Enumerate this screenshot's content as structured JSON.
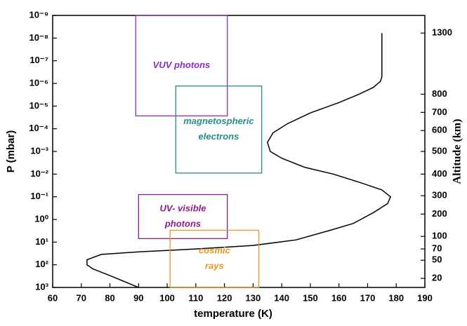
{
  "chart_data": {
    "type": "line",
    "xlabel": "temperature (K)",
    "ylabel": "P (mbar)",
    "y2label": "Altitude (km)",
    "xlim": [
      60,
      190
    ],
    "xticks": [
      60,
      70,
      80,
      90,
      100,
      110,
      120,
      130,
      140,
      150,
      160,
      170,
      180,
      190
    ],
    "ylim": [
      1000,
      1e-09
    ],
    "yscale": "log",
    "yticks": [
      {
        "value": 1e-09,
        "label": "10⁻⁹"
      },
      {
        "value": 1e-08,
        "label": "10⁻⁸"
      },
      {
        "value": 1e-07,
        "label": "10⁻⁷"
      },
      {
        "value": 1e-06,
        "label": "10⁻⁶"
      },
      {
        "value": 1e-05,
        "label": "10⁻⁵"
      },
      {
        "value": 0.0001,
        "label": "10⁻⁴"
      },
      {
        "value": 0.001,
        "label": "10⁻³"
      },
      {
        "value": 0.01,
        "label": "10⁻²"
      },
      {
        "value": 0.1,
        "label": "10⁻¹"
      },
      {
        "value": 1,
        "label": "10⁰"
      },
      {
        "value": 10,
        "label": "10¹"
      },
      {
        "value": 100,
        "label": "10²"
      },
      {
        "value": 1000,
        "label": "10³"
      }
    ],
    "altitude_ticks": [
      {
        "altitude": 1300,
        "pressure": 6e-09
      },
      {
        "altitude": 800,
        "pressure": 3e-06
      },
      {
        "altitude": 700,
        "pressure": 1.9e-05
      },
      {
        "altitude": 600,
        "pressure": 0.00012
      },
      {
        "altitude": 500,
        "pressure": 0.001
      },
      {
        "altitude": 400,
        "pressure": 0.01
      },
      {
        "altitude": 300,
        "pressure": 0.09
      },
      {
        "altitude": 200,
        "pressure": 0.58
      },
      {
        "altitude": 100,
        "pressure": 5.6
      },
      {
        "altitude": 70,
        "pressure": 20
      },
      {
        "altitude": 50,
        "pressure": 63
      },
      {
        "altitude": 20,
        "pressure": 400
      }
    ],
    "line": {
      "color": "#000000",
      "x": [
        175,
        175,
        175,
        174.5,
        172,
        167,
        160,
        150,
        142,
        137,
        135,
        136,
        140,
        148,
        158,
        168,
        175,
        178,
        177,
        172,
        165,
        157,
        145,
        130,
        110,
        90,
        77,
        72,
        72,
        74,
        80,
        90
      ],
      "values": [
        6e-09,
        1e-07,
        5e-07,
        8e-07,
        1.5e-06,
        3e-06,
        7e-06,
        2e-05,
        6e-05,
        0.00015,
        0.0004,
        0.001,
        0.002,
        0.005,
        0.01,
        0.025,
        0.05,
        0.1,
        0.2,
        0.5,
        1.5,
        3,
        8,
        14,
        20,
        27,
        35,
        60,
        100,
        150,
        300,
        1000
      ]
    },
    "boxes": [
      {
        "lines": [
          "VUV photons"
        ],
        "color": "#8e2bc5",
        "xrange": [
          89,
          121
        ],
        "yrange": [
          1e-09,
          2.7e-05
        ]
      },
      {
        "lines": [
          "magnetospheric",
          "electrons"
        ],
        "color": "#2a8c8c",
        "xrange": [
          103,
          133
        ],
        "yrange": [
          1.3e-06,
          0.009
        ]
      },
      {
        "lines": [
          "UV- visible",
          "photons"
        ],
        "color": "#8b1c8b",
        "xrange": [
          90,
          121
        ],
        "yrange": [
          0.08,
          7
        ]
      },
      {
        "lines": [
          "cosmic",
          "rays"
        ],
        "color": "#e8961e",
        "xrange": [
          101,
          132
        ],
        "yrange": [
          3,
          1000
        ]
      }
    ]
  }
}
